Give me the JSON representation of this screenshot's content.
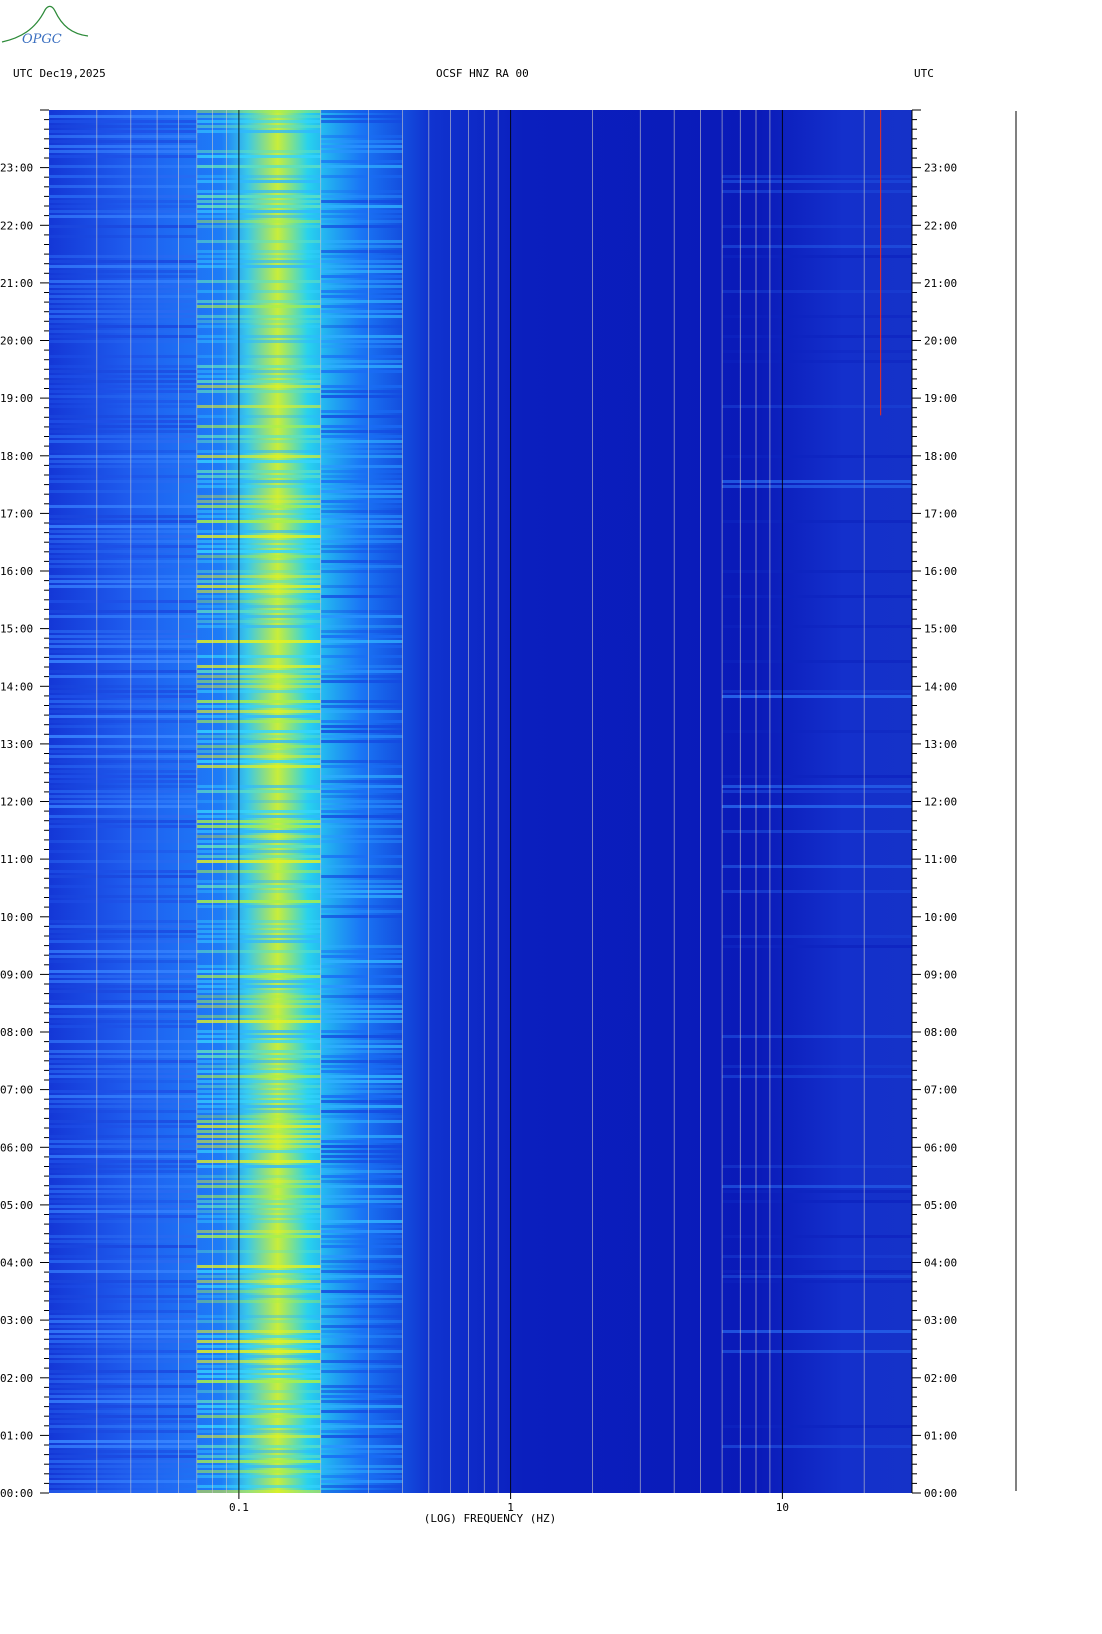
{
  "header": {
    "left": "UTC  Dec19,2025",
    "center": "OCSF HNZ RA 00",
    "right": "UTC"
  },
  "logo": {
    "text": "OPGC"
  },
  "chart_data": {
    "type": "heatmap",
    "xlabel": "(LOG) FREQUENCY (HZ)",
    "x_scale": "log",
    "x_tick_labels": [
      "0.1",
      "1",
      "10"
    ],
    "x_ticks": [
      0.1,
      1,
      10
    ],
    "xlim": [
      0.02,
      30
    ],
    "y_tick_labels": [
      "00:00",
      "01:00",
      "02:00",
      "03:00",
      "04:00",
      "05:00",
      "06:00",
      "07:00",
      "08:00",
      "09:00",
      "10:00",
      "11:00",
      "12:00",
      "13:00",
      "14:00",
      "15:00",
      "16:00",
      "17:00",
      "18:00",
      "19:00",
      "20:00",
      "21:00",
      "22:00",
      "23:00"
    ],
    "ylim_hours": [
      0,
      24
    ],
    "grid_frequencies": [
      0.03,
      0.04,
      0.05,
      0.06,
      0.07,
      0.08,
      0.09,
      0.1,
      0.2,
      0.3,
      0.4,
      0.5,
      0.6,
      0.7,
      0.8,
      0.9,
      1,
      2,
      3,
      4,
      5,
      6,
      7,
      8,
      9,
      10,
      20,
      30
    ],
    "colors": {
      "low": "#0a1ab5",
      "mid": "#19a9ff",
      "high": "#e8f21a",
      "peak": "#ff3010"
    }
  }
}
